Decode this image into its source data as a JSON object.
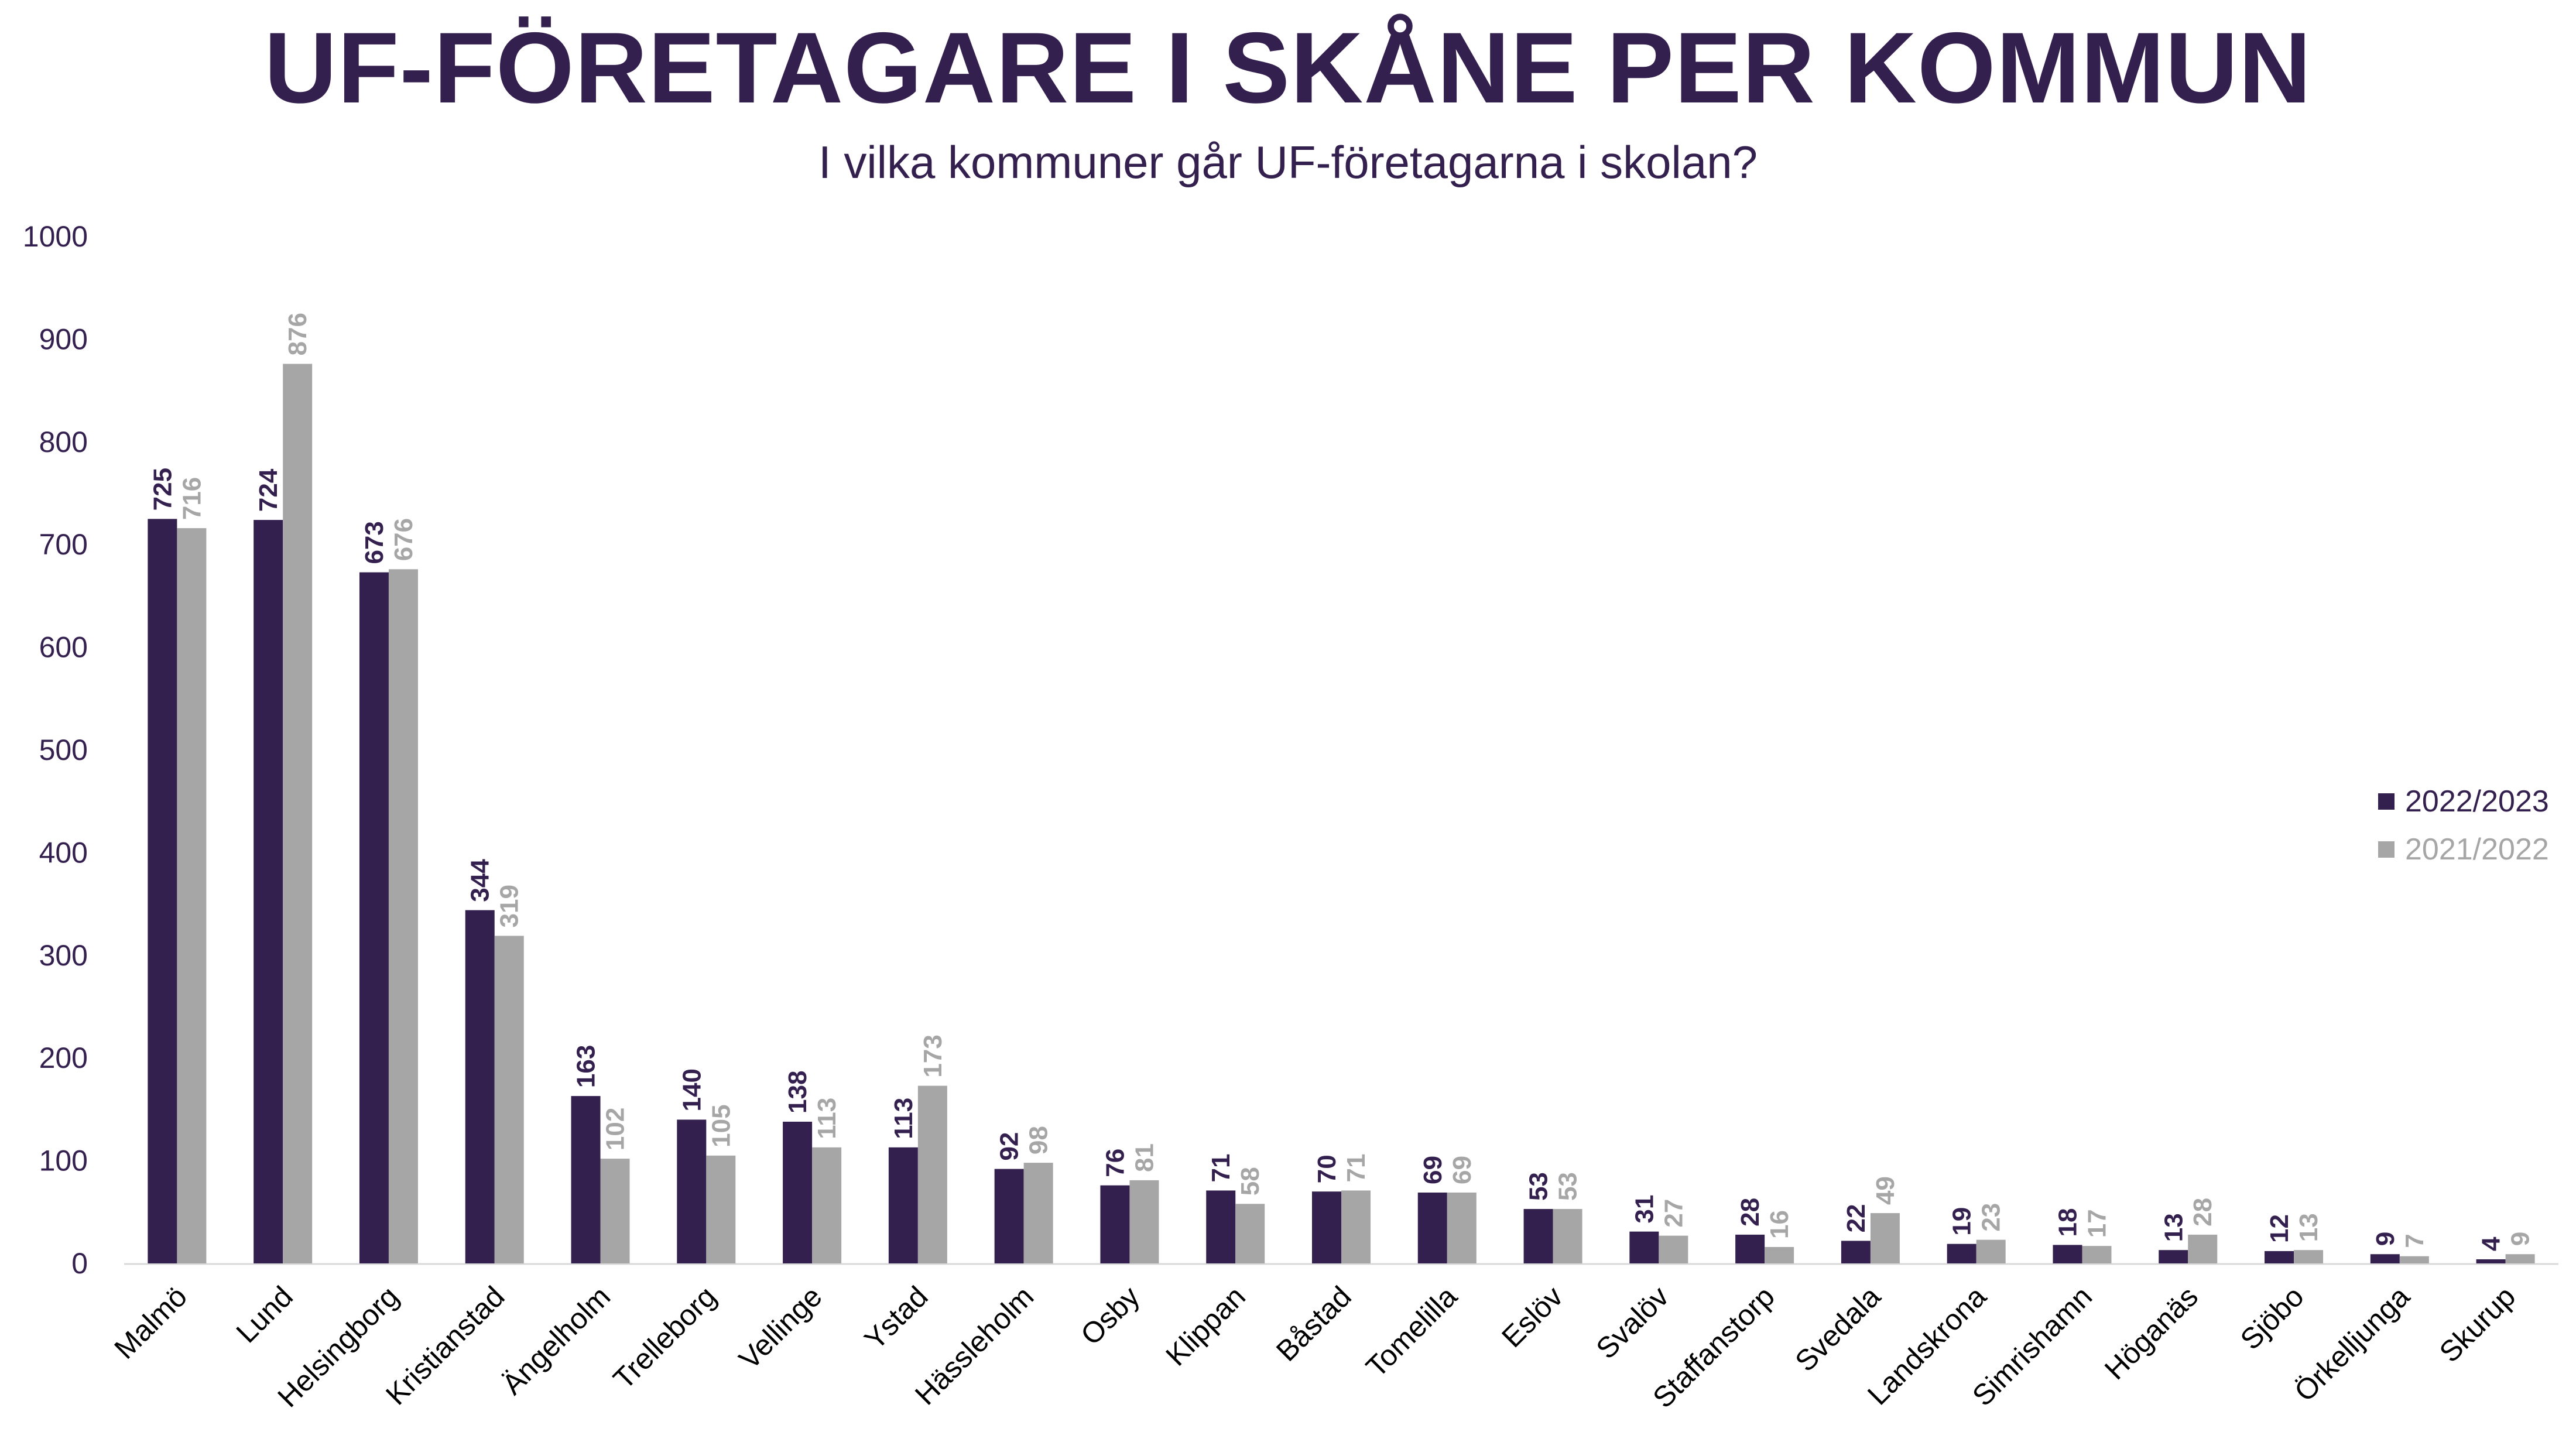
{
  "chart_data": {
    "type": "bar",
    "title": "UF-FÖRETAGARE I SKÅNE PER KOMMUN",
    "subtitle": "I vilka kommuner går UF-företagarna i skolan?",
    "categories": [
      "Malmö",
      "Lund",
      "Helsingborg",
      "Kristianstad",
      "Ängelholm",
      "Trelleborg",
      "Vellinge",
      "Ystad",
      "Hässleholm",
      "Osby",
      "Klippan",
      "Båstad",
      "Tomelilla",
      "Eslöv",
      "Svalöv",
      "Staffanstorp",
      "Svedala",
      "Landskrona",
      "Simrishamn",
      "Höganäs",
      "Sjöbo",
      "Örkelljunga",
      "Skurup"
    ],
    "series": [
      {
        "name": "2022/2023",
        "color": "#34204f",
        "values": [
          725,
          724,
          673,
          344,
          163,
          140,
          138,
          113,
          92,
          76,
          71,
          70,
          69,
          53,
          31,
          28,
          22,
          19,
          18,
          13,
          12,
          9,
          4
        ]
      },
      {
        "name": "2021/2022",
        "color": "#a6a6a6",
        "values": [
          716,
          876,
          676,
          319,
          102,
          105,
          113,
          173,
          98,
          81,
          58,
          71,
          69,
          53,
          27,
          16,
          49,
          23,
          17,
          28,
          13,
          7,
          9
        ]
      }
    ],
    "yticks": [
      "0",
      "100",
      "200",
      "300",
      "400",
      "500",
      "600",
      "700",
      "800",
      "900",
      "1000"
    ],
    "ylim": [
      0,
      1000
    ],
    "xlabel": "",
    "ylabel": "",
    "grid": false,
    "legend_position": "right"
  }
}
